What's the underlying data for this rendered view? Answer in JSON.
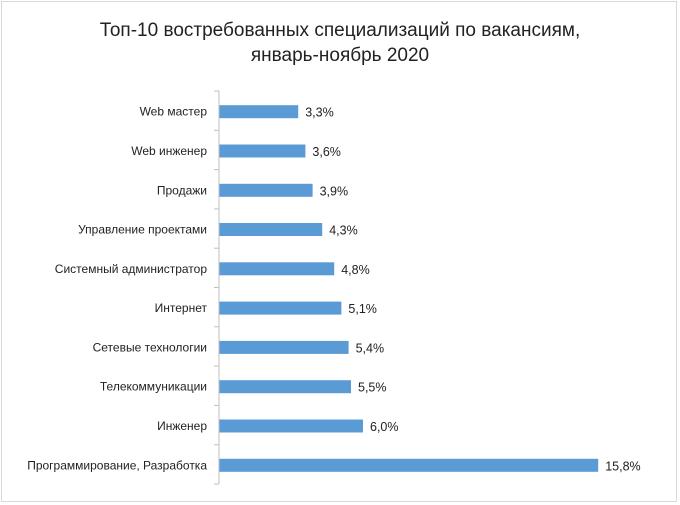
{
  "chart_data": {
    "type": "bar",
    "orientation": "horizontal",
    "title_lines": [
      "Топ-10 востребованных специализаций по вакансиям,",
      "январь-ноябрь 2020"
    ],
    "categories": [
      "Web мастер",
      "Web инженер",
      "Продажи",
      "Управление проектами",
      "Системный администратор",
      "Интернет",
      "Сетевые технологии",
      "Телекоммуникации",
      "Инженер",
      "Программирование, Разработка"
    ],
    "values": [
      3.3,
      3.6,
      3.9,
      4.3,
      4.8,
      5.1,
      5.4,
      5.5,
      6.0,
      15.8
    ],
    "value_labels": [
      "3,3%",
      "3,6%",
      "3,9%",
      "4,3%",
      "4,8%",
      "5,1%",
      "5,4%",
      "5,5%",
      "6,0%",
      "15,8%"
    ],
    "xlim": [
      0,
      16
    ],
    "bar_color": "#5b9bd5",
    "axis_color": "#bfbfbf",
    "grid": false,
    "legend": "none"
  }
}
